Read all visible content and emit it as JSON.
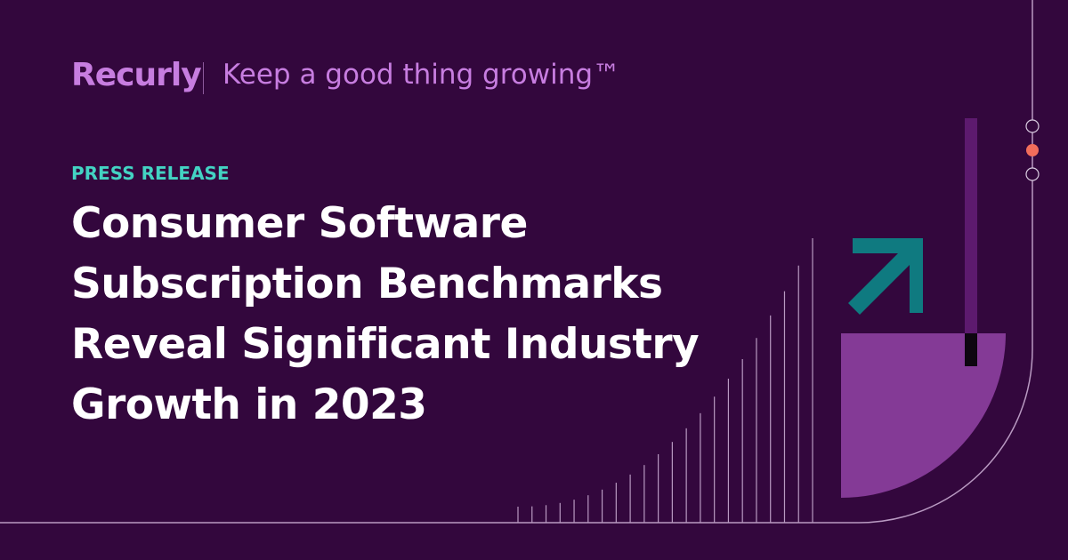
{
  "brand": "Recurly",
  "tagline": "Keep a good thing growing™",
  "label": "PRESS RELEASE",
  "headline": [
    "Consumer Software",
    "Subscription Benchmarks",
    "Reveal Significant Industry",
    "Growth in 2023"
  ]
}
